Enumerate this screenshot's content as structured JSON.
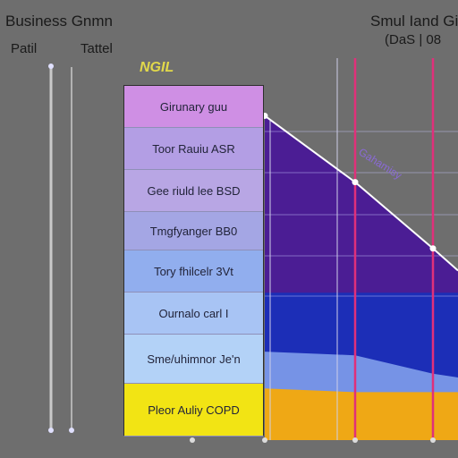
{
  "header": {
    "title": "Business Gnmn",
    "subtitle_left": "Patil",
    "subtitle_right": "Tattel",
    "stack_header": "NGIL",
    "title_right": "Smul Iand Gin",
    "subtitle_right2": "(DaS | 08"
  },
  "colors": {
    "background": "#6e6e6e",
    "purple": "#4a1a96",
    "blue": "#1a2fb8",
    "light_blue": "#7a98e8",
    "orange": "#f4a90c",
    "line": "#ffffff",
    "marker": "#e0307a"
  },
  "chart_data": {
    "type": "area",
    "title": "Business Gnmn",
    "stack_categories": [
      "Girunary guu",
      "Toor Rauiu ASR",
      "Gee riuld lee BSD",
      "Tmgfyanger BB0",
      "Tory fhilcelr 3Vt",
      "Ournalo carl I",
      "Sme/uhimnor Je'n",
      "Pleor Auliy COPD"
    ],
    "stack_colors": [
      "#cf8fe4",
      "#b39ee4",
      "#b8a6e4",
      "#a4a6e4",
      "#91aeee",
      "#a8c4f4",
      "#b3d2f7",
      "#f2e414"
    ],
    "stack_shares": [
      0.12,
      0.12,
      0.12,
      0.11,
      0.12,
      0.12,
      0.14,
      0.15
    ],
    "x": [
      0,
      1,
      2,
      3
    ],
    "series": [
      {
        "name": "",
        "values": [
          88,
          70,
          52,
          46
        ]
      },
      {
        "name": "",
        "values": [
          40,
          40,
          40,
          40
        ]
      },
      {
        "name": "",
        "values": [
          24,
          23,
          18,
          17
        ]
      },
      {
        "name": "",
        "values": [
          14,
          13,
          13,
          13
        ]
      }
    ],
    "line": [
      88,
      70,
      52,
      46
    ],
    "annotation": "Gahamisy",
    "ylim": [
      0,
      100
    ],
    "grid": true
  }
}
